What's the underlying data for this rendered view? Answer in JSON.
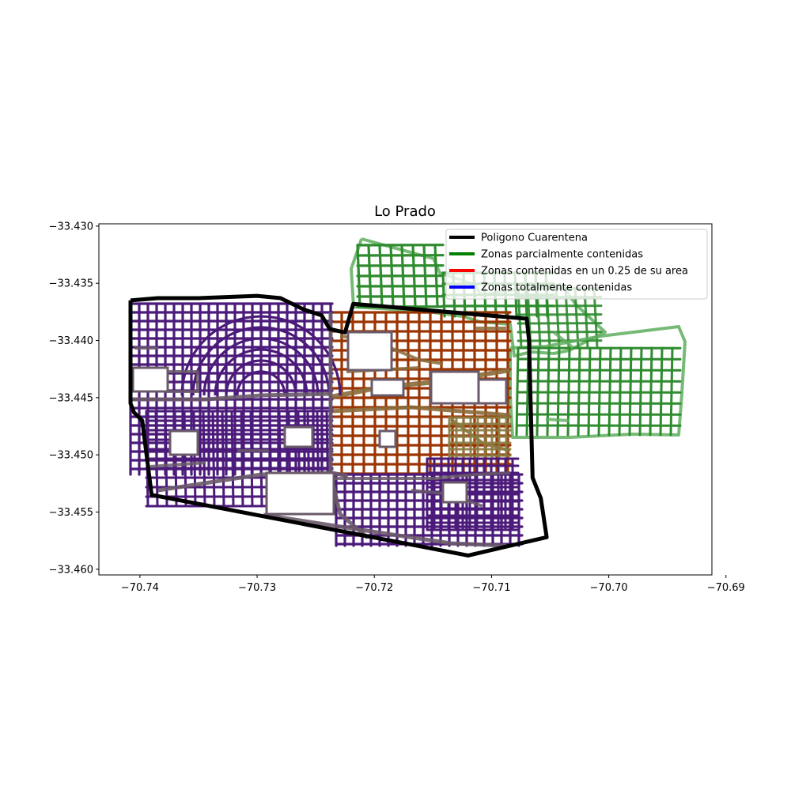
{
  "chart_data": {
    "type": "map",
    "title": "Lo Prado",
    "x_ticks": [
      "−70.74",
      "−70.73",
      "−70.72",
      "−70.71",
      "−70.70",
      "−70.69"
    ],
    "x_tick_values": [
      -70.74,
      -70.73,
      -70.72,
      -70.71,
      -70.7,
      -70.69
    ],
    "y_ticks": [
      "−33.430",
      "−33.435",
      "−33.440",
      "−33.445",
      "−33.450",
      "−33.455",
      "−33.460"
    ],
    "y_tick_values": [
      -33.43,
      -33.435,
      -33.44,
      -33.445,
      -33.45,
      -33.455,
      -33.46
    ],
    "xlim": [
      -70.7435,
      -70.6912
    ],
    "ylim": [
      -33.4605,
      -33.4298
    ],
    "legend_position": "top-right",
    "legend": [
      {
        "label": "Poligono Cuarentena",
        "color": "#000000"
      },
      {
        "label": "Zonas parcialmente contenidas",
        "color": "#008000"
      },
      {
        "label": "Zonas contenidas en un 0.25 de su area",
        "color": "#ff0000"
      },
      {
        "label": "Zonas totalmente contenidas",
        "color": "#0000ff"
      }
    ],
    "colors": {
      "quarantine": "#000000",
      "partial": "#2e8b2e",
      "partial_light": "#5fae5f",
      "quarter": "#9b3400",
      "total": "#4b1a7a",
      "boundary_gray": "#6a5a6a"
    },
    "quarantine_polygon": [
      [
        -70.7408,
        -33.4365
      ],
      [
        -70.7385,
        -33.4363
      ],
      [
        -70.735,
        -33.4363
      ],
      [
        -70.73,
        -33.4361
      ],
      [
        -70.728,
        -33.4363
      ],
      [
        -70.726,
        -33.4373
      ],
      [
        -70.7245,
        -33.4378
      ],
      [
        -70.7238,
        -33.439
      ],
      [
        -70.7225,
        -33.4393
      ],
      [
        -70.7218,
        -33.4368
      ],
      [
        -70.707,
        -33.4381
      ],
      [
        -70.7068,
        -33.44
      ],
      [
        -70.7065,
        -33.452
      ],
      [
        -70.7058,
        -33.4538
      ],
      [
        -70.7053,
        -33.4572
      ],
      [
        -70.712,
        -33.4588
      ],
      [
        -70.739,
        -33.4535
      ],
      [
        -70.7398,
        -33.447
      ],
      [
        -70.7405,
        -33.4463
      ],
      [
        -70.7408,
        -33.4455
      ],
      [
        -70.7408,
        -33.4365
      ]
    ]
  }
}
